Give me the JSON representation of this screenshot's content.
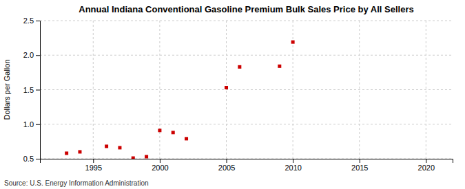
{
  "chart_data": {
    "type": "scatter",
    "title": "Annual Indiana Conventional Gasoline Premium Bulk Sales Price by All Sellers",
    "y_label": "Dollars per Gallon",
    "source": "Source: U.S. Energy Information Administration",
    "x": [
      1993,
      1994,
      1996,
      1997,
      1998,
      1999,
      2000,
      2001,
      2002,
      2005,
      2006,
      2009,
      2010
    ],
    "values": [
      0.58,
      0.6,
      0.68,
      0.66,
      0.51,
      0.53,
      0.91,
      0.88,
      0.79,
      1.53,
      1.83,
      1.84,
      2.19
    ],
    "color": "#cc0000",
    "marker": "square",
    "xlim": [
      1991,
      2022
    ],
    "ylim": [
      0.5,
      2.5
    ],
    "xticks": [
      1995,
      2000,
      2005,
      2010,
      2015,
      2020
    ],
    "yticks": [
      0.5,
      {
        "value": 1.0,
        "label": "1.0"
      },
      1.5,
      {
        "value": 2.0,
        "label": "2.0"
      },
      2.5
    ],
    "grid": true
  }
}
